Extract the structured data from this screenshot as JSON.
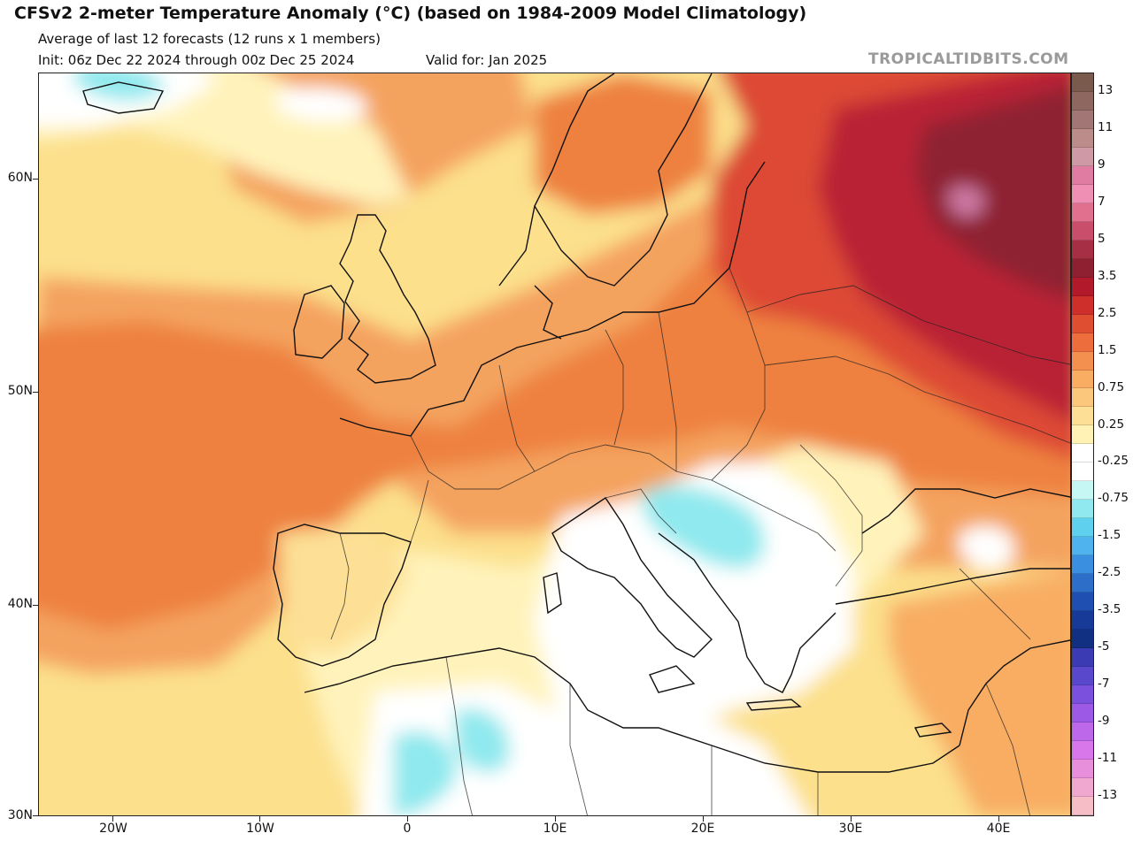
{
  "header": {
    "title": "CFSv2 2-meter Temperature Anomaly (°C) (based on 1984-2009 Model Climatology)",
    "subtitle": "Average of last 12 forecasts (12 runs x 1 members)",
    "init": "Init: 06z Dec 22 2024 through 00z Dec 25 2024",
    "valid": "Valid for: Jan 2025",
    "brand": "TROPICALTIDBITS.COM"
  },
  "map": {
    "lat_labels": [
      "60N",
      "50N",
      "40N",
      "30N"
    ],
    "lon_labels": [
      "20W",
      "10W",
      "0",
      "10E",
      "20E",
      "30E",
      "40E"
    ],
    "extent": {
      "lon": [
        -25,
        45
      ],
      "lat": [
        30,
        65
      ]
    },
    "variable": "2-meter temperature anomaly",
    "units": "°C"
  },
  "colorbar": {
    "labels": [
      "13",
      "11",
      "9",
      "7",
      "5",
      "3.5",
      "2.5",
      "1.5",
      "0.75",
      "0.25",
      "-0.25",
      "-0.75",
      "-1.5",
      "-2.5",
      "-3.5",
      "-5",
      "-7",
      "-9",
      "-11",
      "-13"
    ],
    "colors": [
      "#7b5a4e",
      "#8e6760",
      "#a27674",
      "#bc8c8a",
      "#cf9aa6",
      "#e07ca2",
      "#ee8fb3",
      "#e0708d",
      "#c94e6b",
      "#a62e45",
      "#8e2032",
      "#b2192a",
      "#cf2f2a",
      "#e04e31",
      "#ed6e3c",
      "#f4904f",
      "#f8ad63",
      "#fbc77c",
      "#fde095",
      "#fff2b4",
      "#ffffff",
      "#ffffff",
      "#c6f7f4",
      "#8fe9ee",
      "#5fd0ee",
      "#4fb3ee",
      "#3a8fe0",
      "#2d6ec9",
      "#1f4fb0",
      "#173a98",
      "#123081",
      "#3b3cb4",
      "#5a48cc",
      "#7a50dc",
      "#9b59e6",
      "#bd67ea",
      "#d877ea",
      "#e88fdc",
      "#f0a7d0",
      "#f6bdc7"
    ]
  }
}
